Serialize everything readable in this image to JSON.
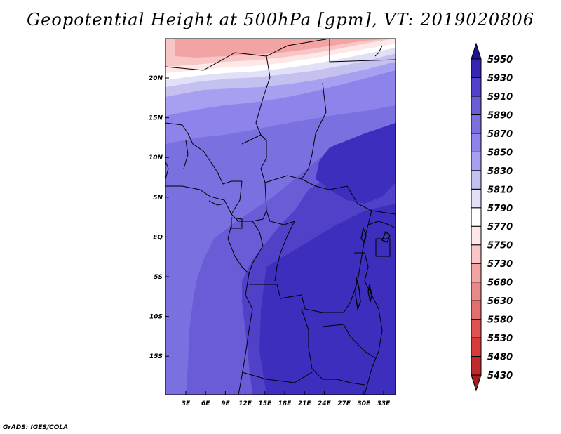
{
  "title": "Geopotential Height at 500hPa [gpm], VT: 2019020806",
  "credit": "GrADS: IGES/COLA",
  "map": {
    "lat_ticks": [
      "20N",
      "15N",
      "10N",
      "5N",
      "EQ",
      "5S",
      "10S",
      "15S"
    ],
    "lon_ticks": [
      "3E",
      "6E",
      "9E",
      "12E",
      "15E",
      "18E",
      "21E",
      "24E",
      "27E",
      "30E",
      "33E"
    ]
  },
  "colorbar": {
    "levels": [
      "5430",
      "5480",
      "5530",
      "5580",
      "5630",
      "5680",
      "5730",
      "5750",
      "5770",
      "5790",
      "5810",
      "5830",
      "5850",
      "5870",
      "5890",
      "5910",
      "5930",
      "5950"
    ],
    "colors": [
      "#a51d1d",
      "#c12a2a",
      "#d83a3a",
      "#e05252",
      "#e36e6e",
      "#ea8888",
      "#f2a3a3",
      "#f8c6c6",
      "#fde7e7",
      "#ffffff",
      "#e2e0f7",
      "#c4c0f0",
      "#a79ff0",
      "#8d83ea",
      "#7b70e0",
      "#6a5cd6",
      "#5141c9",
      "#3426b3",
      "#1d1396"
    ]
  }
}
